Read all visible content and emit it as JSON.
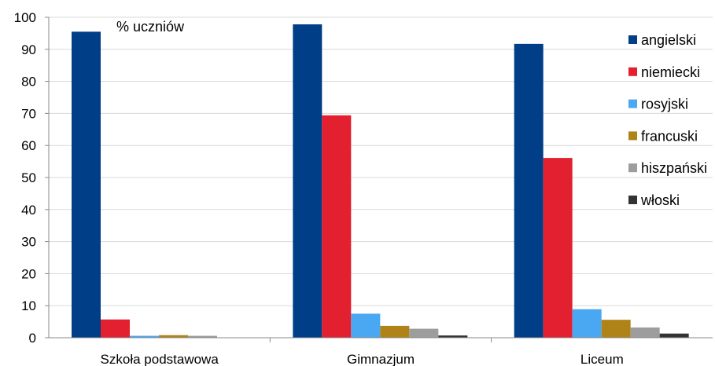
{
  "chart_data": {
    "type": "bar",
    "categories": [
      "Szkoła podstawowa",
      "Gimnazjum",
      "Liceum"
    ],
    "ylabel": "% uczniów",
    "ylim": [
      0,
      100
    ],
    "yticks": [
      0,
      10,
      20,
      30,
      40,
      50,
      60,
      70,
      80,
      90,
      100
    ],
    "grid": true,
    "legend_position": "top-right",
    "series": [
      {
        "name": "angielski",
        "color": "#003f87",
        "values": [
          95.5,
          97.8,
          91.7
        ]
      },
      {
        "name": "niemiecki",
        "color": "#e3202f",
        "values": [
          5.7,
          69.4,
          56.1
        ]
      },
      {
        "name": "rosyjski",
        "color": "#4aa8f3",
        "values": [
          0.6,
          7.5,
          8.9
        ]
      },
      {
        "name": "francuski",
        "color": "#b08318",
        "values": [
          0.8,
          3.7,
          5.6
        ]
      },
      {
        "name": "hiszpański",
        "color": "#9d9d9d",
        "values": [
          0.6,
          2.8,
          3.2
        ]
      },
      {
        "name": "włoski",
        "color": "#333333",
        "values": [
          0,
          0.7,
          1.3
        ]
      }
    ]
  }
}
